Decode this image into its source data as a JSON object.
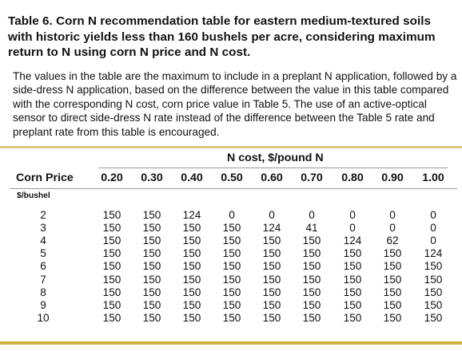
{
  "table": {
    "title": "Table 6.  Corn N recommendation table for eastern medium-textured soils with historic yields less than 160 bushels per acre, considering maximum return to N using corn N price and N cost.",
    "description": "The values in the table are the maximum to include in a preplant N application, followed by a side-dress N application, based on the difference between the value in this table compared with the corresponding N cost, corn price value in Table 5. The use of an active-optical sensor to direct side-dress N rate instead of the difference between the Table 5 rate and preplant rate from this table is encouraged.",
    "n_cost_label": "N cost, $/pound N",
    "corn_price_label": "Corn Price",
    "corn_price_unit": "$/bushel",
    "n_costs": [
      "0.20",
      "0.30",
      "0.40",
      "0.50",
      "0.60",
      "0.70",
      "0.80",
      "0.90",
      "1.00"
    ],
    "rows": [
      {
        "price": "2",
        "values": [
          "150",
          "150",
          "124",
          "0",
          "0",
          "0",
          "0",
          "0",
          "0"
        ]
      },
      {
        "price": "3",
        "values": [
          "150",
          "150",
          "150",
          "150",
          "124",
          "41",
          "0",
          "0",
          "0"
        ]
      },
      {
        "price": "4",
        "values": [
          "150",
          "150",
          "150",
          "150",
          "150",
          "150",
          "124",
          "62",
          "0"
        ]
      },
      {
        "price": "5",
        "values": [
          "150",
          "150",
          "150",
          "150",
          "150",
          "150",
          "150",
          "150",
          "124"
        ]
      },
      {
        "price": "6",
        "values": [
          "150",
          "150",
          "150",
          "150",
          "150",
          "150",
          "150",
          "150",
          "150"
        ]
      },
      {
        "price": "7",
        "values": [
          "150",
          "150",
          "150",
          "150",
          "150",
          "150",
          "150",
          "150",
          "150"
        ]
      },
      {
        "price": "8",
        "values": [
          "150",
          "150",
          "150",
          "150",
          "150",
          "150",
          "150",
          "150",
          "150"
        ]
      },
      {
        "price": "9",
        "values": [
          "150",
          "150",
          "150",
          "150",
          "150",
          "150",
          "150",
          "150",
          "150"
        ]
      },
      {
        "price": "10",
        "values": [
          "150",
          "150",
          "150",
          "150",
          "150",
          "150",
          "150",
          "150",
          "150"
        ]
      }
    ]
  },
  "colors": {
    "rule_top": "#d7c87a",
    "rule_bottom": "#cfb342",
    "text": "#111111"
  }
}
